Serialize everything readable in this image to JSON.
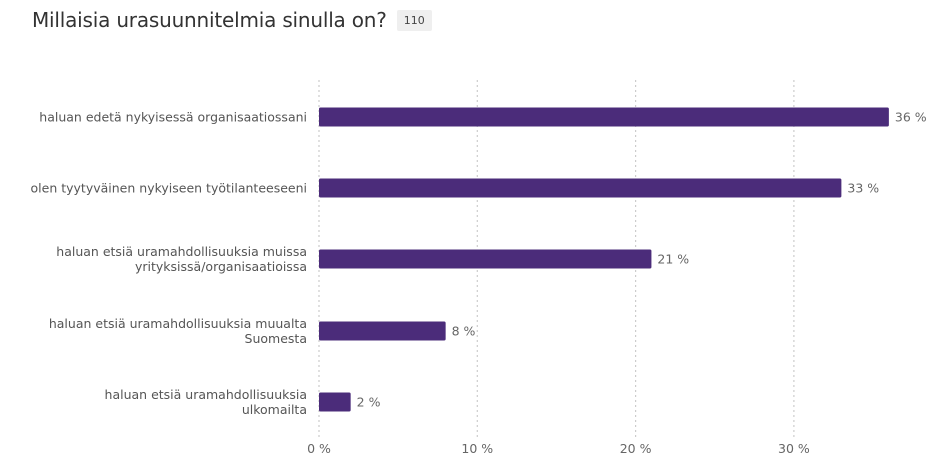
{
  "title": "Millaisia urasuunnitelmia sinulla on?",
  "response_count": "110",
  "colors": {
    "bar": "#4b2c7a",
    "grid": "#cccccc"
  },
  "chart_data": {
    "type": "bar",
    "orientation": "horizontal",
    "title": "Millaisia urasuunnitelmia sinulla on?",
    "categories": [
      [
        "haluan edetä nykyisessä organisaatiossani"
      ],
      [
        "olen tyytyväinen nykyiseen työtilanteeseeni"
      ],
      [
        "haluan etsiä uramahdollisuuksia muissa",
        "yrityksissä/organisaatioissa"
      ],
      [
        "haluan etsiä uramahdollisuuksia muualta",
        "Suomesta"
      ],
      [
        "haluan etsiä uramahdollisuuksia",
        "ulkomailta"
      ]
    ],
    "values": [
      36,
      33,
      21,
      8,
      2
    ],
    "value_labels": [
      "36 %",
      "33 %",
      "21 %",
      "8 %",
      "2 %"
    ],
    "xlim": [
      0,
      38
    ],
    "xticks": [
      0,
      10,
      20,
      30
    ],
    "xtick_labels": [
      "0 %",
      "10 %",
      "20 %",
      "30 %"
    ],
    "grid": "vertical-dotted",
    "legend": "none"
  }
}
